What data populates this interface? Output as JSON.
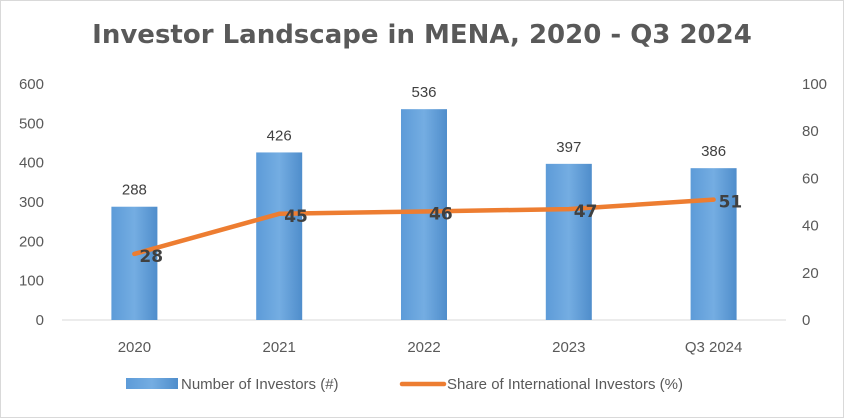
{
  "chart_data": {
    "type": "bar",
    "title": "Investor Landscape in MENA, 2020 - Q3 2024",
    "categories": [
      "2020",
      "2021",
      "2022",
      "2023",
      "Q3 2024"
    ],
    "series": [
      {
        "name": "Number of Investors (#)",
        "type": "bar",
        "axis": "left",
        "values": [
          288,
          426,
          536,
          397,
          386
        ],
        "labels": [
          "288",
          "426",
          "536",
          "397",
          "386"
        ],
        "color": "#5B9BD5"
      },
      {
        "name": "Share of International Investors (%)",
        "type": "line",
        "axis": "right",
        "values": [
          28,
          45,
          46,
          47,
          51
        ],
        "labels": [
          "28",
          "45",
          "46",
          "47",
          "51"
        ],
        "color": "#ED7D31"
      }
    ],
    "ylim_left": [
      0,
      600
    ],
    "yticks_left": [
      "0",
      "100",
      "200",
      "300",
      "400",
      "500",
      "600"
    ],
    "ylim_right": [
      0,
      100
    ],
    "yticks_right": [
      "0",
      "20",
      "40",
      "60",
      "80",
      "100"
    ],
    "grid": false,
    "legend": "bottom"
  }
}
